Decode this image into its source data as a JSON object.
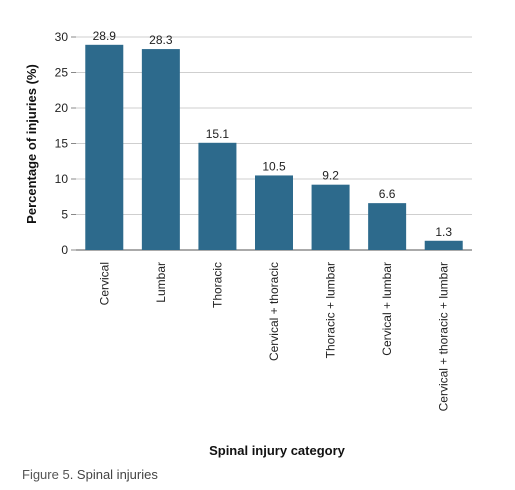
{
  "chart_data": {
    "type": "bar",
    "categories": [
      "Cervical",
      "Lumbar",
      "Thoracic",
      "Cervical + thoracic",
      "Thoracic + lumbar",
      "Cervical + lumbar",
      "Cervical + thoracic + lumbar"
    ],
    "values": [
      28.9,
      28.3,
      15.1,
      10.5,
      9.2,
      6.6,
      1.3
    ],
    "data_labels": [
      "28.9",
      "28.3",
      "15.1",
      "10.5",
      "9.2",
      "6.6",
      "1.3"
    ],
    "xlabel": "Spinal injury category",
    "ylabel": "Percentage of injuries (%)",
    "ylim": [
      0,
      30
    ],
    "yticks": [
      0,
      5,
      10,
      15,
      20,
      25,
      30
    ],
    "grid": true,
    "bar_color": "#2d6a8c"
  },
  "caption": {
    "label": "Figure 5",
    "text": ". Spinal injuries"
  }
}
